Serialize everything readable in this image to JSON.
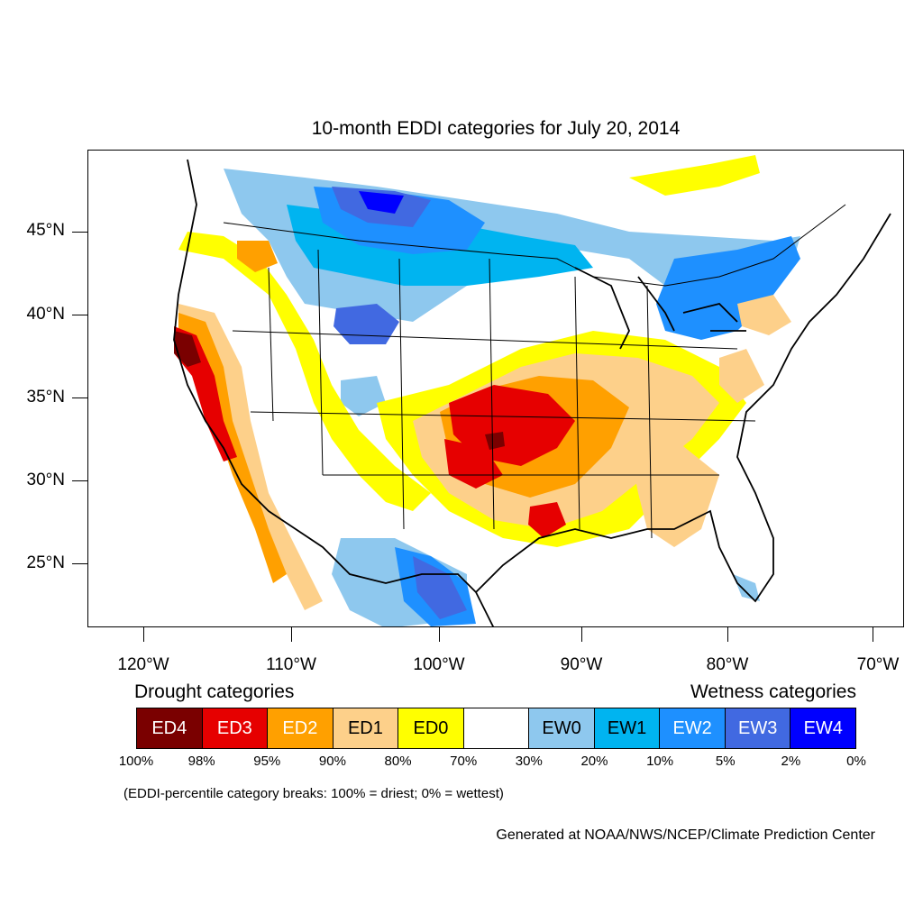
{
  "title": "10-month EDDI categories for July 20, 2014",
  "lat_labels": [
    "45°N",
    "40°N",
    "35°N",
    "30°N",
    "25°N"
  ],
  "lon_labels": [
    "120°W",
    "110°W",
    "100°W",
    "90°W",
    "80°W",
    "70°W"
  ],
  "legend": {
    "drought_heading": "Drought categories",
    "wetness_heading": "Wetness categories",
    "categories": [
      {
        "label": "ED4",
        "color": "#7a0000",
        "text_color": "#ffffff"
      },
      {
        "label": "ED3",
        "color": "#e60000",
        "text_color": "#ffffff"
      },
      {
        "label": "ED2",
        "color": "#ffa000",
        "text_color": "#ffffff"
      },
      {
        "label": "ED1",
        "color": "#fdd08a",
        "text_color": "#000000"
      },
      {
        "label": "ED0",
        "color": "#ffff00",
        "text_color": "#000000"
      },
      {
        "label": "",
        "color": "#ffffff",
        "text_color": "#000000"
      },
      {
        "label": "EW0",
        "color": "#8ec8ee",
        "text_color": "#000000"
      },
      {
        "label": "EW1",
        "color": "#00b4f0",
        "text_color": "#000000"
      },
      {
        "label": "EW2",
        "color": "#1e90ff",
        "text_color": "#ffffff"
      },
      {
        "label": "EW3",
        "color": "#4169e1",
        "text_color": "#ffffff"
      },
      {
        "label": "EW4",
        "color": "#0000ff",
        "text_color": "#ffffff"
      }
    ],
    "breaks": [
      "100%",
      "98%",
      "95%",
      "90%",
      "80%",
      "70%",
      "30%",
      "20%",
      "10%",
      "5%",
      "2%",
      "0%"
    ]
  },
  "note": "(EDDI-percentile category breaks: 100% = driest; 0% = wettest)",
  "credit": "Generated at NOAA/NWS/NCEP/Climate Prediction Center"
}
